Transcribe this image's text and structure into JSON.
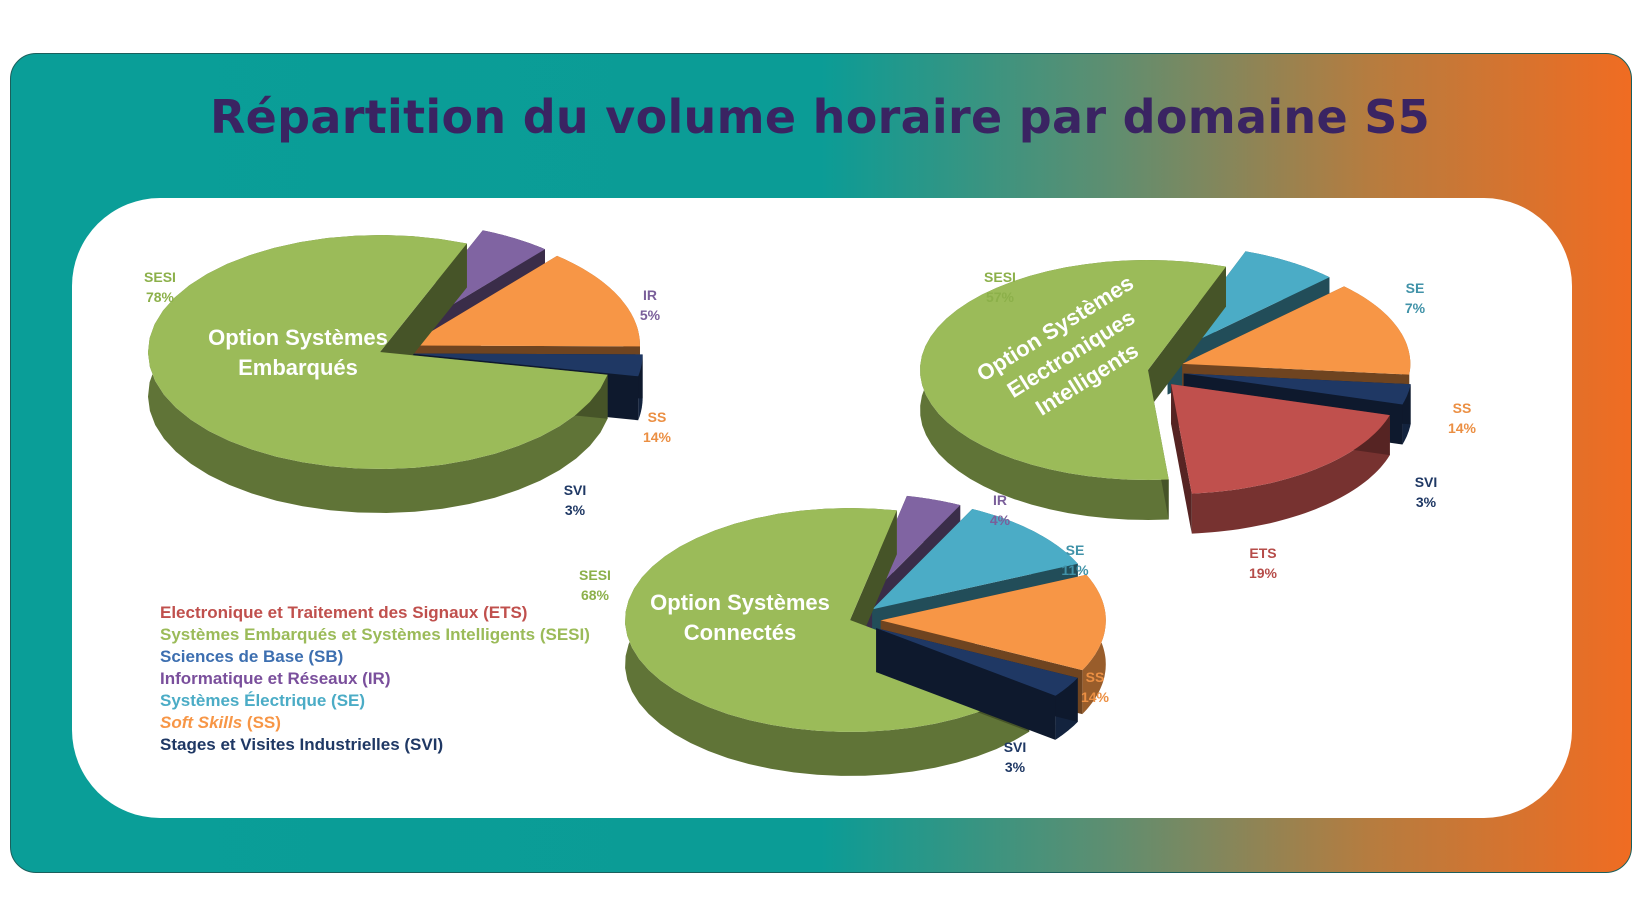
{
  "title": "Répartition du volume horaire par domaine S5",
  "colors": {
    "SESI": "#9bbb59",
    "IR": "#8064a2",
    "SS": "#f79646",
    "SVI": "#1f3864",
    "ETS": "#c0504d",
    "SE": "#4bacc6"
  },
  "chart_data": [
    {
      "type": "pie",
      "title": "Option Systèmes Embarqués",
      "title_lines": [
        "Option Systèmes",
        "Embarqués"
      ],
      "slices": [
        {
          "key": "SESI",
          "label": "SESI",
          "value": 78,
          "text": "78%"
        },
        {
          "key": "IR",
          "label": "IR",
          "value": 5,
          "text": "5%"
        },
        {
          "key": "SS",
          "label": "SS",
          "value": 14,
          "text": "14%"
        },
        {
          "key": "SVI",
          "label": "SVI",
          "value": 3,
          "text": "3%"
        }
      ]
    },
    {
      "type": "pie",
      "title": "Option Systèmes Electroniques Intelligents",
      "title_lines": [
        "Option Systèmes",
        "Electroniques",
        "Intelligents"
      ],
      "slices": [
        {
          "key": "SESI",
          "label": "SESI",
          "value": 57,
          "text": "57%"
        },
        {
          "key": "SE",
          "label": "SE",
          "value": 7,
          "text": "7%"
        },
        {
          "key": "SS",
          "label": "SS",
          "value": 14,
          "text": "14%"
        },
        {
          "key": "SVI",
          "label": "SVI",
          "value": 3,
          "text": "3%"
        },
        {
          "key": "ETS",
          "label": "ETS",
          "value": 19,
          "text": "19%"
        }
      ]
    },
    {
      "type": "pie",
      "title": "Option Systèmes Connectés",
      "title_lines": [
        "Option Systèmes",
        "Connectés"
      ],
      "slices": [
        {
          "key": "SESI",
          "label": "SESI",
          "value": 68,
          "text": "68%"
        },
        {
          "key": "IR",
          "label": "IR",
          "value": 4,
          "text": "4%"
        },
        {
          "key": "SE",
          "label": "SE",
          "value": 11,
          "text": "11%"
        },
        {
          "key": "SS",
          "label": "SS",
          "value": 14,
          "text": "14%"
        },
        {
          "key": "SVI",
          "label": "SVI",
          "value": 3,
          "text": "3%"
        }
      ]
    }
  ],
  "legend": [
    {
      "key": "ETS",
      "text": "Electronique et Traitement des Signaux (ETS)",
      "color": "#c0504d"
    },
    {
      "key": "SESI",
      "text": "Systèmes Embarqués et Systèmes Intelligents (SESI)",
      "color": "#9bbb59"
    },
    {
      "key": "SB",
      "text": "Sciences de Base (SB)",
      "color": "#3d6fb0"
    },
    {
      "key": "IR",
      "text": "Informatique et Réseaux (IR)",
      "color": "#7a4f9c"
    },
    {
      "key": "SE",
      "text": "Systèmes Électrique (SE)",
      "color": "#4bacc6"
    },
    {
      "key": "SS",
      "text": "Soft Skills (SS)",
      "color": "#f79646",
      "italic_part": "Soft Skills"
    },
    {
      "key": "SVI",
      "text": "Stages et Visites Industrielles (SVI)",
      "color": "#1f3864"
    }
  ]
}
